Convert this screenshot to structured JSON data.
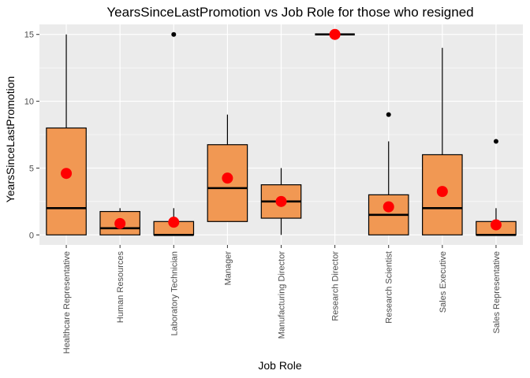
{
  "chart_data": {
    "type": "boxplot",
    "title": "YearsSinceLastPromotion vs Job Role for those who resigned",
    "xlabel": "Job Role",
    "ylabel": "YearsSinceLastPromotion",
    "ylim": [
      -0.75,
      15.75
    ],
    "yticks": [
      0,
      5,
      10,
      15
    ],
    "grid": true,
    "legend": "none",
    "colors": {
      "panel_background": "#ebebeb",
      "grid_major": "#ffffff",
      "box_fill": "#f19853",
      "box_outline": "#000000",
      "mean_point": "#ff0000",
      "outlier": "#000000"
    },
    "categories": [
      "Healthcare Representative",
      "Human Resources",
      "Laboratory Technician",
      "Manager",
      "Manufacturing Director",
      "Research Director",
      "Research Scientist",
      "Sales Executive",
      "Sales Representative"
    ],
    "boxes": [
      {
        "category": "Healthcare Representative",
        "whisker_low": 0,
        "q1": 0,
        "median": 2,
        "q3": 8,
        "whisker_high": 15,
        "mean": 4.6,
        "outliers": []
      },
      {
        "category": "Human Resources",
        "whisker_low": 0,
        "q1": 0,
        "median": 0.5,
        "q3": 1.75,
        "whisker_high": 2,
        "mean": 0.85,
        "outliers": []
      },
      {
        "category": "Laboratory Technician",
        "whisker_low": 0,
        "q1": 0,
        "median": 0,
        "q3": 1,
        "whisker_high": 2,
        "mean": 0.95,
        "outliers": [
          15
        ]
      },
      {
        "category": "Manager",
        "whisker_low": 1,
        "q1": 1,
        "median": 3.5,
        "q3": 6.75,
        "whisker_high": 9,
        "mean": 4.25,
        "outliers": []
      },
      {
        "category": "Manufacturing Director",
        "whisker_low": 0,
        "q1": 1.25,
        "median": 2.5,
        "q3": 3.75,
        "whisker_high": 5,
        "mean": 2.5,
        "outliers": []
      },
      {
        "category": "Research Director",
        "whisker_low": 15,
        "q1": 15,
        "median": 15,
        "q3": 15,
        "whisker_high": 15,
        "mean": 15,
        "outliers": []
      },
      {
        "category": "Research Scientist",
        "whisker_low": 0,
        "q1": 0,
        "median": 1.5,
        "q3": 3,
        "whisker_high": 7,
        "mean": 2.1,
        "outliers": [
          9
        ]
      },
      {
        "category": "Sales Executive",
        "whisker_low": 0,
        "q1": 0,
        "median": 2,
        "q3": 6,
        "whisker_high": 14,
        "mean": 3.25,
        "outliers": []
      },
      {
        "category": "Sales Representative",
        "whisker_low": 0,
        "q1": 0,
        "median": 0,
        "q3": 1,
        "whisker_high": 2,
        "mean": 0.75,
        "outliers": [
          7
        ]
      }
    ]
  }
}
